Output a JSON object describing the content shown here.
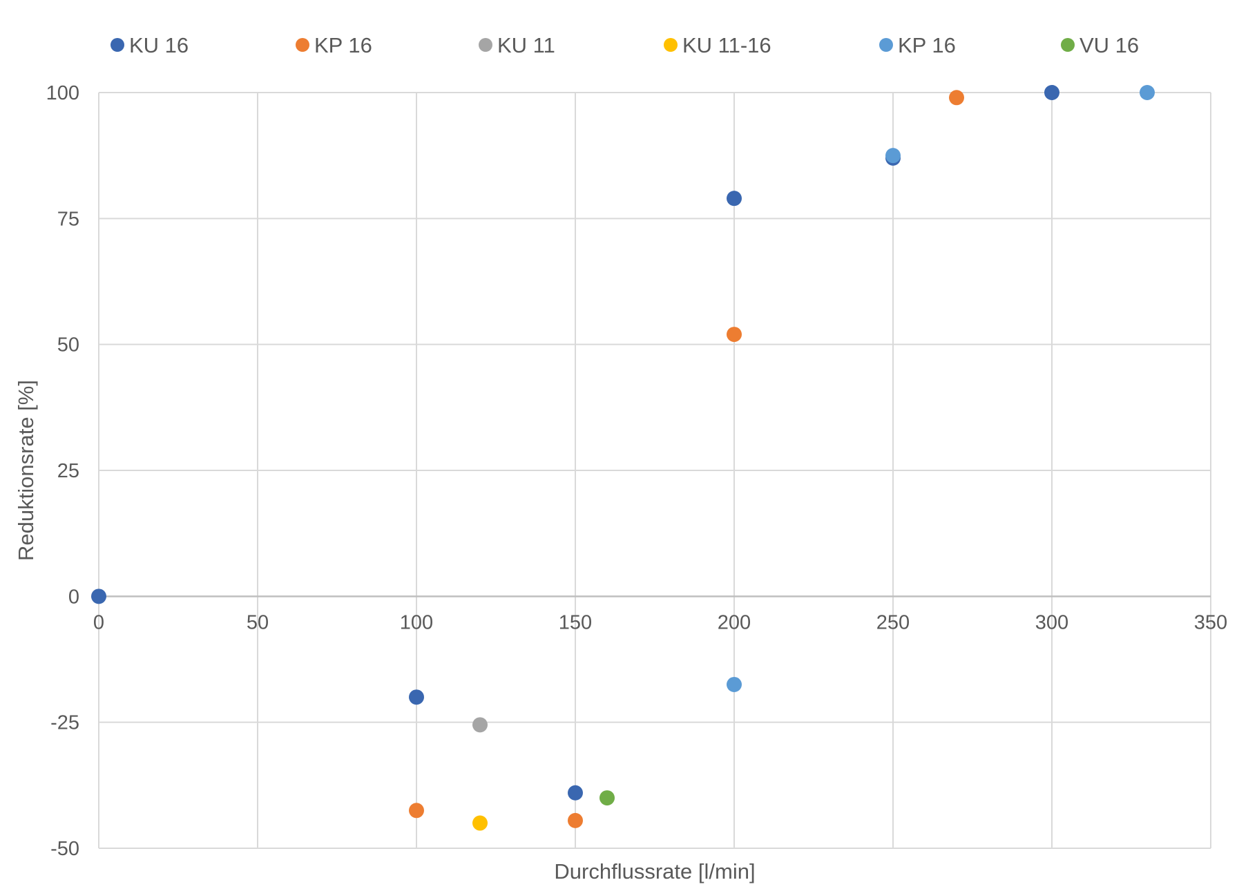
{
  "chart_data": {
    "type": "scatter",
    "title": "",
    "xlabel": "Durchflussrate [l/min]",
    "ylabel": "Reduktionsrate [%]",
    "xlim": [
      0,
      350
    ],
    "ylim": [
      -50,
      100
    ],
    "x_ticks": [
      0,
      50,
      100,
      150,
      200,
      250,
      300,
      350
    ],
    "y_ticks": [
      -50,
      -25,
      0,
      25,
      50,
      75,
      100
    ],
    "grid": true,
    "legend_position": "top",
    "series": [
      {
        "name": "KU 16",
        "color": "#3a67b0",
        "points": [
          {
            "x": 0,
            "y": 0
          },
          {
            "x": 100,
            "y": -20
          },
          {
            "x": 150,
            "y": -39
          },
          {
            "x": 200,
            "y": 79
          },
          {
            "x": 250,
            "y": 87
          },
          {
            "x": 300,
            "y": 100
          }
        ]
      },
      {
        "name": "KP 16",
        "color": "#ed7d31",
        "points": [
          {
            "x": 100,
            "y": -42.5
          },
          {
            "x": 150,
            "y": -44.5
          },
          {
            "x": 200,
            "y": 52
          },
          {
            "x": 270,
            "y": 99
          }
        ]
      },
      {
        "name": "KU 11",
        "color": "#a5a5a5",
        "points": [
          {
            "x": 120,
            "y": -25.5
          }
        ]
      },
      {
        "name": "KU 11-16",
        "color": "#ffc000",
        "points": [
          {
            "x": 120,
            "y": -45
          }
        ]
      },
      {
        "name": "KP 16",
        "color": "#5b9bd5",
        "points": [
          {
            "x": 200,
            "y": -17.5
          },
          {
            "x": 250,
            "y": 87.5
          },
          {
            "x": 330,
            "y": 100
          }
        ]
      },
      {
        "name": "VU 16",
        "color": "#70ad47",
        "points": [
          {
            "x": 160,
            "y": -40
          }
        ]
      }
    ]
  }
}
